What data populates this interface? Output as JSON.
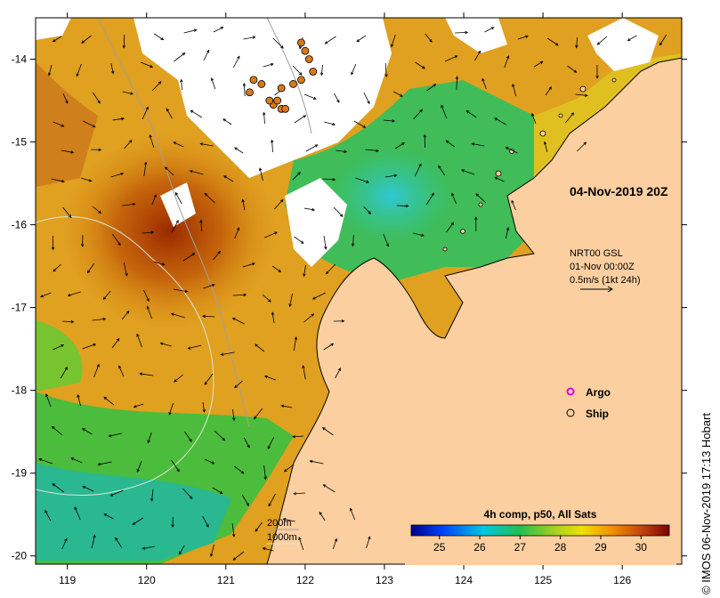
{
  "map": {
    "date_label": "04-Nov-2019 20Z",
    "current_info": {
      "source": "NRT00 GSL",
      "date": "01-Nov 00:00Z",
      "scale": "0.5m/s (1kt 24h)"
    },
    "legend": {
      "argo_label": "Argo",
      "ship_label": "Ship"
    },
    "isobaths": {
      "shallow": "200m",
      "deep": "1000m"
    },
    "colorbar": {
      "title": "4h comp, p50, All Sats",
      "ticks": [
        "25",
        "26",
        "27",
        "28",
        "29",
        "30"
      ],
      "min_value": 24.3,
      "max_value": 30.7,
      "tick_values": [
        25,
        26,
        27,
        28,
        29,
        30
      ]
    },
    "x_axis": {
      "ticks": [
        "119",
        "120",
        "121",
        "122",
        "123",
        "124",
        "125",
        "126"
      ],
      "tick_values": [
        119,
        120,
        121,
        122,
        123,
        124,
        125,
        126
      ],
      "range": [
        118.6,
        126.75
      ]
    },
    "y_axis": {
      "ticks": [
        "-14",
        "-15",
        "-16",
        "-17",
        "-18",
        "-19",
        "-20"
      ],
      "tick_values": [
        -14,
        -15,
        -16,
        -17,
        -18,
        -19,
        -20
      ],
      "range": [
        -20.1,
        -13.5
      ]
    },
    "copyright": "© IMOS 06-Nov-2019 17:13 Hobart",
    "colors": {
      "land": "#fccfa0",
      "coast": "#000000",
      "no_data": "#ffffff",
      "ship_marker": "#d97a1a",
      "argo_marker": "#e000e0"
    },
    "ship_positions": [
      [
        121.6,
        -14.55
      ],
      [
        121.7,
        -14.6
      ],
      [
        121.75,
        -14.6
      ],
      [
        121.55,
        -14.5
      ],
      [
        121.3,
        -14.4
      ],
      [
        121.35,
        -14.25
      ],
      [
        121.45,
        -14.3
      ],
      [
        121.65,
        -14.5
      ],
      [
        121.95,
        -13.8
      ],
      [
        122.0,
        -13.9
      ],
      [
        122.05,
        -14.0
      ],
      [
        122.1,
        -14.15
      ],
      [
        121.95,
        -14.25
      ],
      [
        121.7,
        -14.35
      ],
      [
        121.85,
        -14.3
      ]
    ]
  }
}
